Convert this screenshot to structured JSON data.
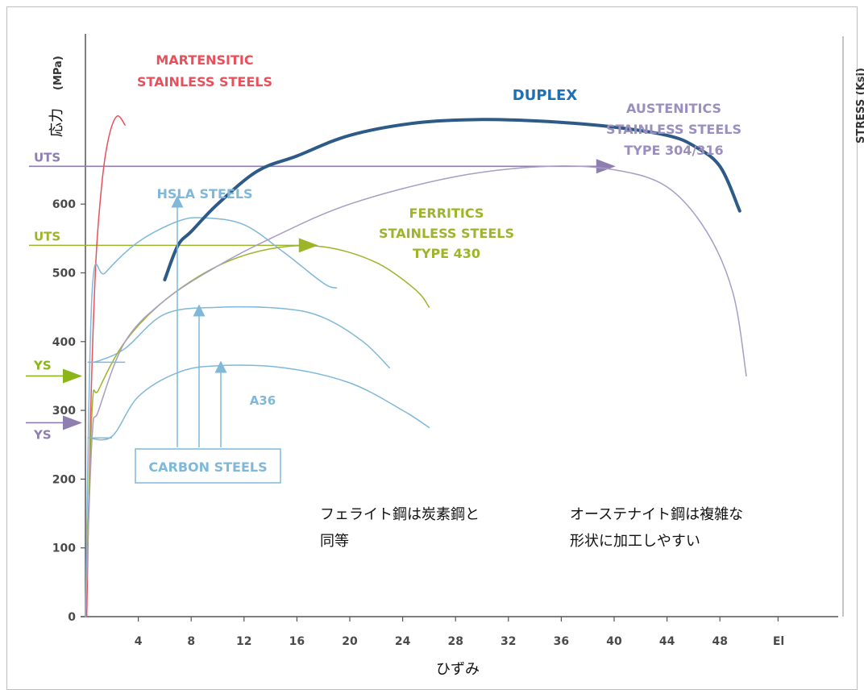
{
  "chart_data": {
    "type": "line",
    "title": "",
    "xlabel": "ひずみ",
    "ylabel": "応力",
    "ylabel_unit": "(MPa)",
    "right_axis_label": "STRESS (Ksi)",
    "xlim": [
      0,
      52
    ],
    "ylim": [
      0,
      700
    ],
    "x_ticks": [
      4,
      8,
      12,
      16,
      20,
      24,
      28,
      32,
      36,
      40,
      44,
      48
    ],
    "x_end_label": "El",
    "y_ticks": [
      0,
      100,
      200,
      300,
      400,
      500,
      600
    ],
    "reference_lines": [
      {
        "label": "UTS",
        "value": 655,
        "color": "#8e7fb0"
      },
      {
        "label": "UTS",
        "value": 540,
        "color": "#9cb52a"
      }
    ],
    "markers": [
      {
        "label": "YS",
        "value": 350,
        "color": "#8cb51a"
      },
      {
        "label": "YS",
        "value": 282,
        "color": "#8e7fb0"
      }
    ],
    "series": [
      {
        "name": "MARTENSITIC STAINLESS STEELS",
        "color": "#e8505b",
        "x": [
          0.1,
          0.4,
          0.8,
          1.3,
          1.8,
          2.4,
          3.0
        ],
        "y": [
          0,
          300,
          520,
          640,
          700,
          728,
          715
        ]
      },
      {
        "name": "HSLA STEELS",
        "color": "#7fb8d8",
        "x": [
          0,
          0.5,
          1.5,
          4,
          7,
          9,
          12,
          15,
          18,
          19
        ],
        "y": [
          0,
          470,
          500,
          545,
          575,
          580,
          570,
          530,
          485,
          478
        ]
      },
      {
        "name": "CARBON STEELS",
        "color": "#7fb8d8",
        "x": [
          0.2,
          1,
          3,
          6,
          10,
          15,
          18,
          21,
          23
        ],
        "y": [
          370,
          372,
          390,
          440,
          450,
          448,
          435,
          400,
          362
        ]
      },
      {
        "name": "A36",
        "color": "#7fb8d8",
        "x": [
          0.2,
          2,
          4,
          7,
          10,
          15,
          20,
          24,
          26
        ],
        "y": [
          260,
          262,
          320,
          355,
          365,
          362,
          340,
          300,
          275
        ]
      },
      {
        "name": "FERRITICS STAINLESS STEELS TYPE 430",
        "color": "#9cb52a",
        "x": [
          0,
          0.5,
          1,
          3,
          6,
          10,
          14,
          18,
          22,
          25,
          26
        ],
        "y": [
          0,
          300,
          330,
          400,
          460,
          510,
          535,
          538,
          515,
          475,
          450
        ]
      },
      {
        "name": "AUSTENITICS STAINLESS STEELS TYPE 304/316",
        "color": "#a99cc5",
        "x": [
          0,
          0.5,
          1,
          3,
          6,
          10,
          14,
          20,
          28,
          35,
          40,
          44,
          47,
          49,
          50
        ],
        "y": [
          0,
          260,
          300,
          400,
          460,
          510,
          550,
          600,
          640,
          655,
          650,
          625,
          560,
          470,
          350
        ]
      },
      {
        "name": "DUPLEX",
        "color": "#2e5a87",
        "x": [
          6,
          7,
          8,
          10,
          13,
          16,
          20,
          25,
          30,
          35,
          40,
          44,
          46,
          48,
          49.5
        ],
        "y": [
          490,
          540,
          560,
          600,
          648,
          670,
          700,
          718,
          723,
          720,
          712,
          700,
          685,
          655,
          590
        ]
      }
    ]
  },
  "labels": {
    "martensitic_line1": "MARTENSITIC",
    "martensitic_line2": "STAINLESS STEELS",
    "duplex": "DUPLEX",
    "austenitic_line1": "AUSTENITICS",
    "austenitic_line2": "STAINLESS STEELS",
    "austenitic_line3": "TYPE 304/316",
    "hsla": "HSLA STEELS",
    "ferritic_line1": "FERRITICS",
    "ferritic_line2": "STAINLESS STEELS",
    "ferritic_line3": "TYPE 430",
    "a36": "A36",
    "carbon": "CARBON STEELS"
  },
  "annotations": {
    "ferritic_line1": "フェライト鋼は炭素鋼と",
    "ferritic_line2": "同等",
    "austenitic_line1": "オーステナイト鋼は複雑な",
    "austenitic_line2": "形状に加工しやすい"
  },
  "colors": {
    "axis": "#555555",
    "martensitic": "#e8505b",
    "blue_steel": "#7fb8d8",
    "ferritic": "#9cb52a",
    "austenitic": "#8e7fb0",
    "duplex": "#2e5a87",
    "duplex_label": "#1f6fb5"
  }
}
